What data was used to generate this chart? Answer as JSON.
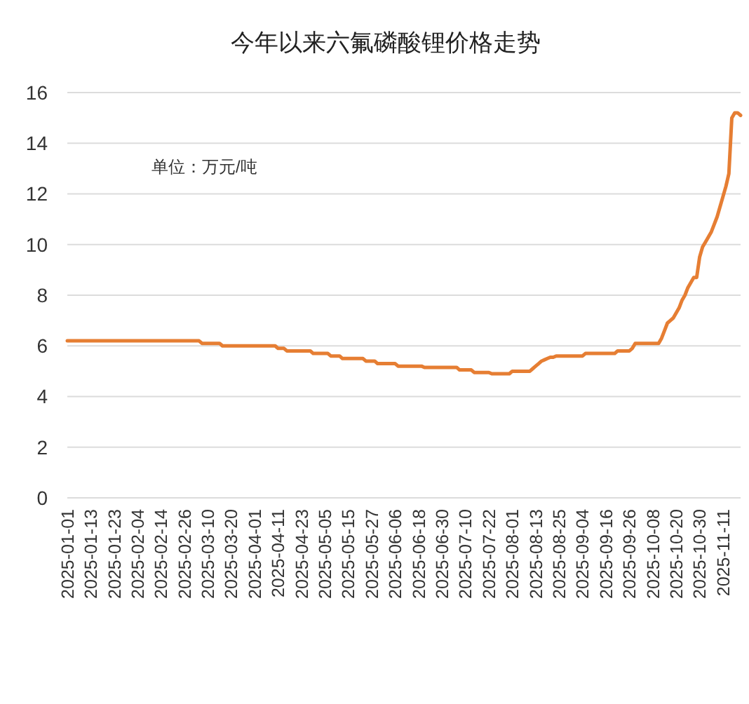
{
  "chart_data": {
    "type": "line",
    "title": "今年以来六氟磷酸锂价格走势",
    "annotations": [
      "单位：万元/吨"
    ],
    "categories": [
      "2025-01-01",
      null,
      null,
      null,
      null,
      null,
      null,
      null,
      "2025-01-13",
      null,
      null,
      null,
      null,
      null,
      null,
      null,
      "2025-01-23",
      null,
      null,
      null,
      null,
      null,
      null,
      null,
      "2025-02-04",
      null,
      null,
      null,
      null,
      null,
      null,
      null,
      "2025-02-14",
      null,
      null,
      null,
      null,
      null,
      null,
      null,
      "2025-02-26",
      null,
      null,
      null,
      null,
      null,
      null,
      null,
      "2025-03-10",
      null,
      null,
      null,
      null,
      null,
      null,
      null,
      "2025-03-20",
      null,
      null,
      null,
      null,
      null,
      null,
      null,
      "2025-04-01",
      null,
      null,
      null,
      null,
      null,
      null,
      null,
      "2025-04-11",
      null,
      null,
      null,
      null,
      null,
      null,
      null,
      "2025-04-23",
      null,
      null,
      null,
      null,
      null,
      null,
      null,
      "2025-05-05",
      null,
      null,
      null,
      null,
      null,
      null,
      null,
      "2025-05-15",
      null,
      null,
      null,
      null,
      null,
      null,
      null,
      "2025-05-27",
      null,
      null,
      null,
      null,
      null,
      null,
      null,
      "2025-06-06",
      null,
      null,
      null,
      null,
      null,
      null,
      null,
      "2025-06-18",
      null,
      null,
      null,
      null,
      null,
      null,
      null,
      "2025-06-30",
      null,
      null,
      null,
      null,
      null,
      null,
      null,
      "2025-07-10",
      null,
      null,
      null,
      null,
      null,
      null,
      null,
      "2025-07-22",
      null,
      null,
      null,
      null,
      null,
      null,
      null,
      "2025-08-01",
      null,
      null,
      null,
      null,
      null,
      null,
      null,
      "2025-08-13",
      null,
      null,
      null,
      null,
      null,
      null,
      null,
      "2025-08-25",
      null,
      null,
      null,
      null,
      null,
      null,
      null,
      "2025-09-04",
      null,
      null,
      null,
      null,
      null,
      null,
      null,
      "2025-09-16",
      null,
      null,
      null,
      null,
      null,
      null,
      null,
      "2025-09-26",
      null,
      null,
      null,
      null,
      null,
      null,
      null,
      "2025-10-08",
      null,
      null,
      null,
      null,
      null,
      null,
      null,
      "2025-10-20",
      null,
      null,
      null,
      null,
      null,
      null,
      null,
      "2025-10-30",
      null,
      null,
      null,
      null,
      null,
      null,
      null,
      "2025-11-11",
      null,
      null,
      null,
      null,
      null,
      null
    ],
    "values": [
      6.2,
      6.2,
      6.2,
      6.2,
      6.2,
      6.2,
      6.2,
      6.2,
      6.2,
      6.2,
      6.2,
      6.2,
      6.2,
      6.2,
      6.2,
      6.2,
      6.2,
      6.2,
      6.2,
      6.2,
      6.2,
      6.2,
      6.2,
      6.2,
      6.2,
      6.2,
      6.2,
      6.2,
      6.2,
      6.2,
      6.2,
      6.2,
      6.2,
      6.2,
      6.2,
      6.2,
      6.2,
      6.2,
      6.2,
      6.2,
      6.2,
      6.2,
      6.2,
      6.2,
      6.2,
      6.2,
      6.1,
      6.1,
      6.1,
      6.1,
      6.1,
      6.1,
      6.1,
      6.0,
      6.0,
      6.0,
      6.0,
      6.0,
      6.0,
      6.0,
      6.0,
      6.0,
      6.0,
      6.0,
      6.0,
      6.0,
      6.0,
      6.0,
      6.0,
      6.0,
      6.0,
      6.0,
      5.9,
      5.9,
      5.9,
      5.8,
      5.8,
      5.8,
      5.8,
      5.8,
      5.8,
      5.8,
      5.8,
      5.8,
      5.7,
      5.7,
      5.7,
      5.7,
      5.7,
      5.7,
      5.6,
      5.6,
      5.6,
      5.6,
      5.5,
      5.5,
      5.5,
      5.5,
      5.5,
      5.5,
      5.5,
      5.5,
      5.4,
      5.4,
      5.4,
      5.4,
      5.3,
      5.3,
      5.3,
      5.3,
      5.3,
      5.3,
      5.3,
      5.2,
      5.2,
      5.2,
      5.2,
      5.2,
      5.2,
      5.2,
      5.2,
      5.2,
      5.15,
      5.15,
      5.15,
      5.15,
      5.15,
      5.15,
      5.15,
      5.15,
      5.15,
      5.15,
      5.15,
      5.15,
      5.05,
      5.05,
      5.05,
      5.05,
      5.05,
      4.95,
      4.95,
      4.95,
      4.95,
      4.95,
      4.95,
      4.9,
      4.9,
      4.9,
      4.9,
      4.9,
      4.9,
      4.9,
      5.0,
      5.0,
      5.0,
      5.0,
      5.0,
      5.0,
      5.0,
      5.1,
      5.2,
      5.3,
      5.4,
      5.45,
      5.5,
      5.55,
      5.55,
      5.6,
      5.6,
      5.6,
      5.6,
      5.6,
      5.6,
      5.6,
      5.6,
      5.6,
      5.6,
      5.7,
      5.7,
      5.7,
      5.7,
      5.7,
      5.7,
      5.7,
      5.7,
      5.7,
      5.7,
      5.7,
      5.8,
      5.8,
      5.8,
      5.8,
      5.8,
      5.9,
      6.1,
      6.1,
      6.1,
      6.1,
      6.1,
      6.1,
      6.1,
      6.1,
      6.1,
      6.3,
      6.6,
      6.9,
      7.0,
      7.1,
      7.3,
      7.5,
      7.8,
      8.0,
      8.3,
      8.5,
      8.7,
      8.7,
      9.5,
      9.9,
      10.1,
      10.3,
      10.5,
      10.8,
      11.1,
      11.5,
      11.9,
      12.3,
      12.8,
      15.0,
      15.2,
      15.2,
      15.1
    ],
    "color": "#e67e33",
    "ylim": [
      0,
      16
    ],
    "yticks": [
      0,
      2,
      4,
      6,
      8,
      10,
      12,
      14,
      16
    ],
    "grid": "y"
  }
}
